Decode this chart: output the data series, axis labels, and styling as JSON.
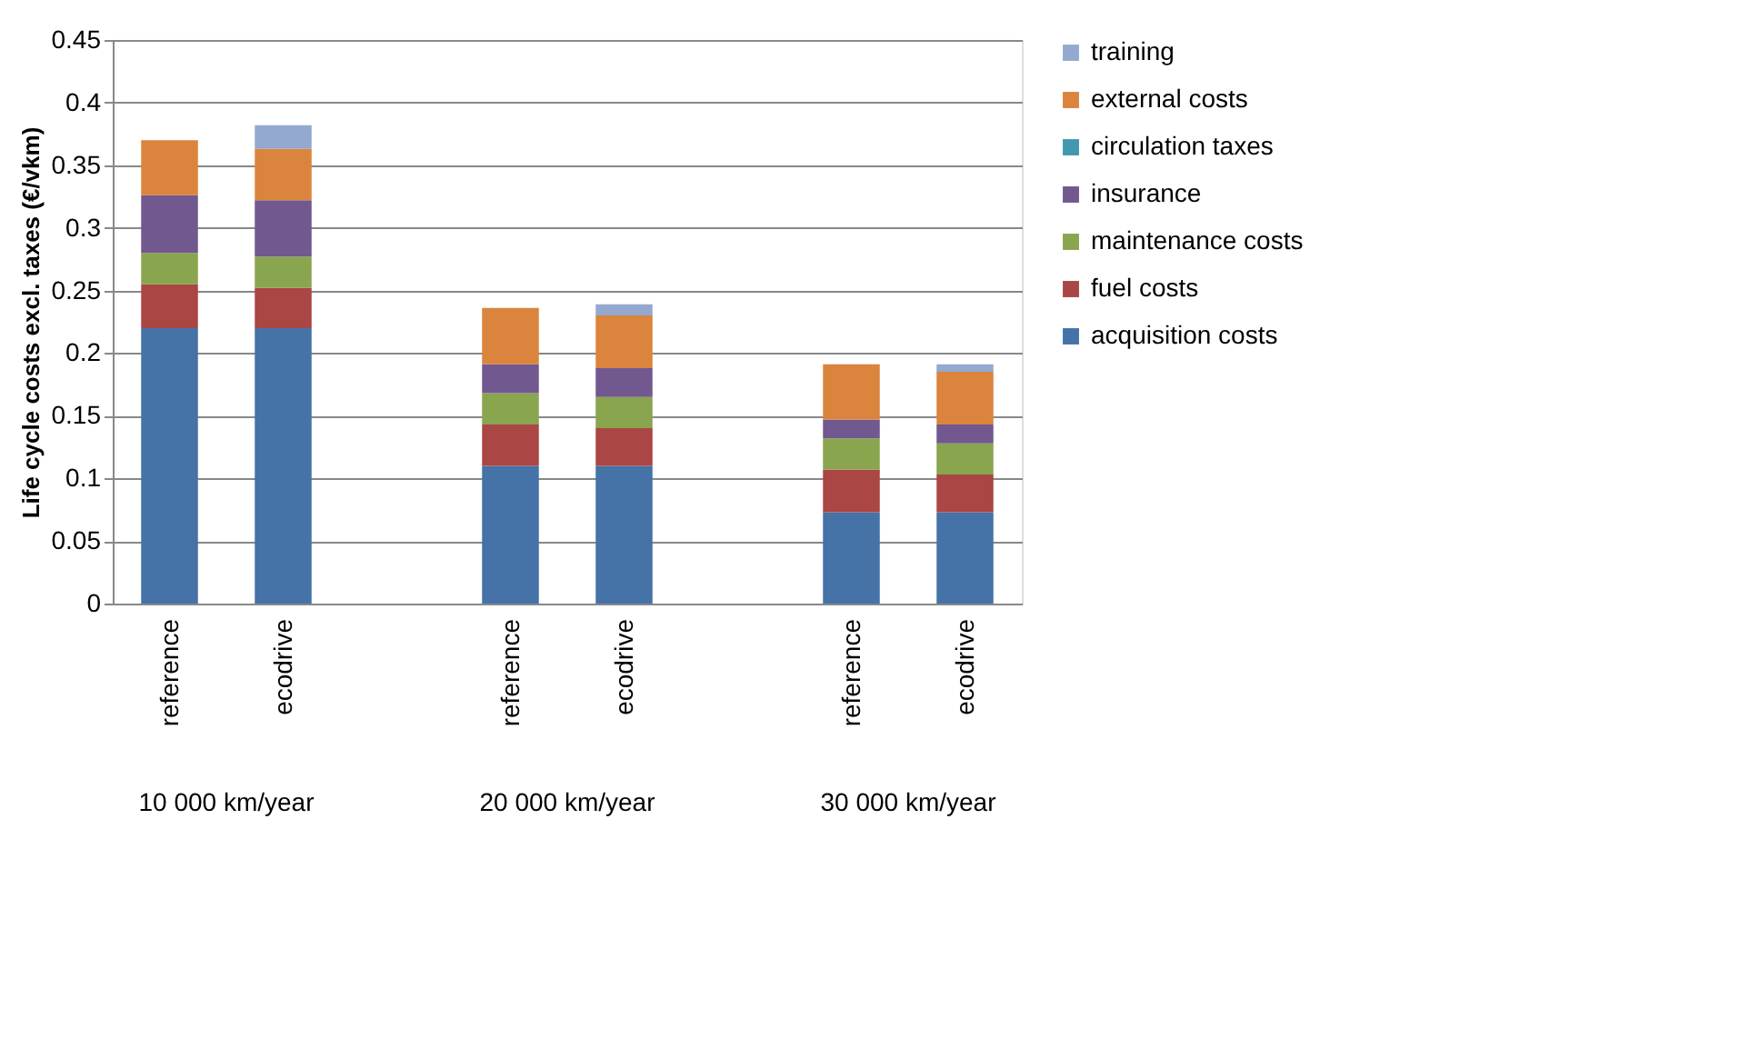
{
  "chart_data": {
    "type": "bar",
    "stacked": true,
    "ylabel": "Life cycle costs excl. taxes (€/vkm)",
    "categories": [
      "reference",
      "ecodrive",
      null,
      "reference",
      "ecodrive",
      null,
      "reference",
      "ecodrive"
    ],
    "annotations": [
      "10 000 km/year",
      "20 000 km/year",
      "30 000 km/year"
    ],
    "series": [
      {
        "name": "acquisition costs",
        "color": "#4572a7",
        "values": [
          0.22,
          0.22,
          null,
          0.11,
          0.11,
          null,
          0.073,
          0.073
        ]
      },
      {
        "name": "fuel costs",
        "color": "#aa4643",
        "values": [
          0.035,
          0.032,
          null,
          0.033,
          0.03,
          null,
          0.034,
          0.03
        ]
      },
      {
        "name": "maintenance costs",
        "color": "#89a54e",
        "values": [
          0.025,
          0.025,
          null,
          0.025,
          0.025,
          null,
          0.025,
          0.025
        ]
      },
      {
        "name": "insurance",
        "color": "#71588f",
        "values": [
          0.046,
          0.045,
          null,
          0.023,
          0.023,
          null,
          0.015,
          0.015
        ]
      },
      {
        "name": "circulation taxes",
        "color": "#4198af",
        "values": [
          0,
          0,
          null,
          0,
          0,
          null,
          0,
          0
        ]
      },
      {
        "name": "external costs",
        "color": "#db843d",
        "values": [
          0.044,
          0.041,
          null,
          0.045,
          0.042,
          null,
          0.044,
          0.042
        ]
      },
      {
        "name": "training",
        "color": "#93a9cf",
        "values": [
          0,
          0.019,
          null,
          0,
          0.009,
          null,
          0,
          0.006
        ]
      }
    ],
    "ylim": [
      0,
      0.45
    ],
    "yticks": [
      0,
      0.05,
      0.1,
      0.15,
      0.2,
      0.25,
      0.3,
      0.35,
      0.4,
      0.45
    ],
    "grid": "y",
    "legend": "right"
  }
}
